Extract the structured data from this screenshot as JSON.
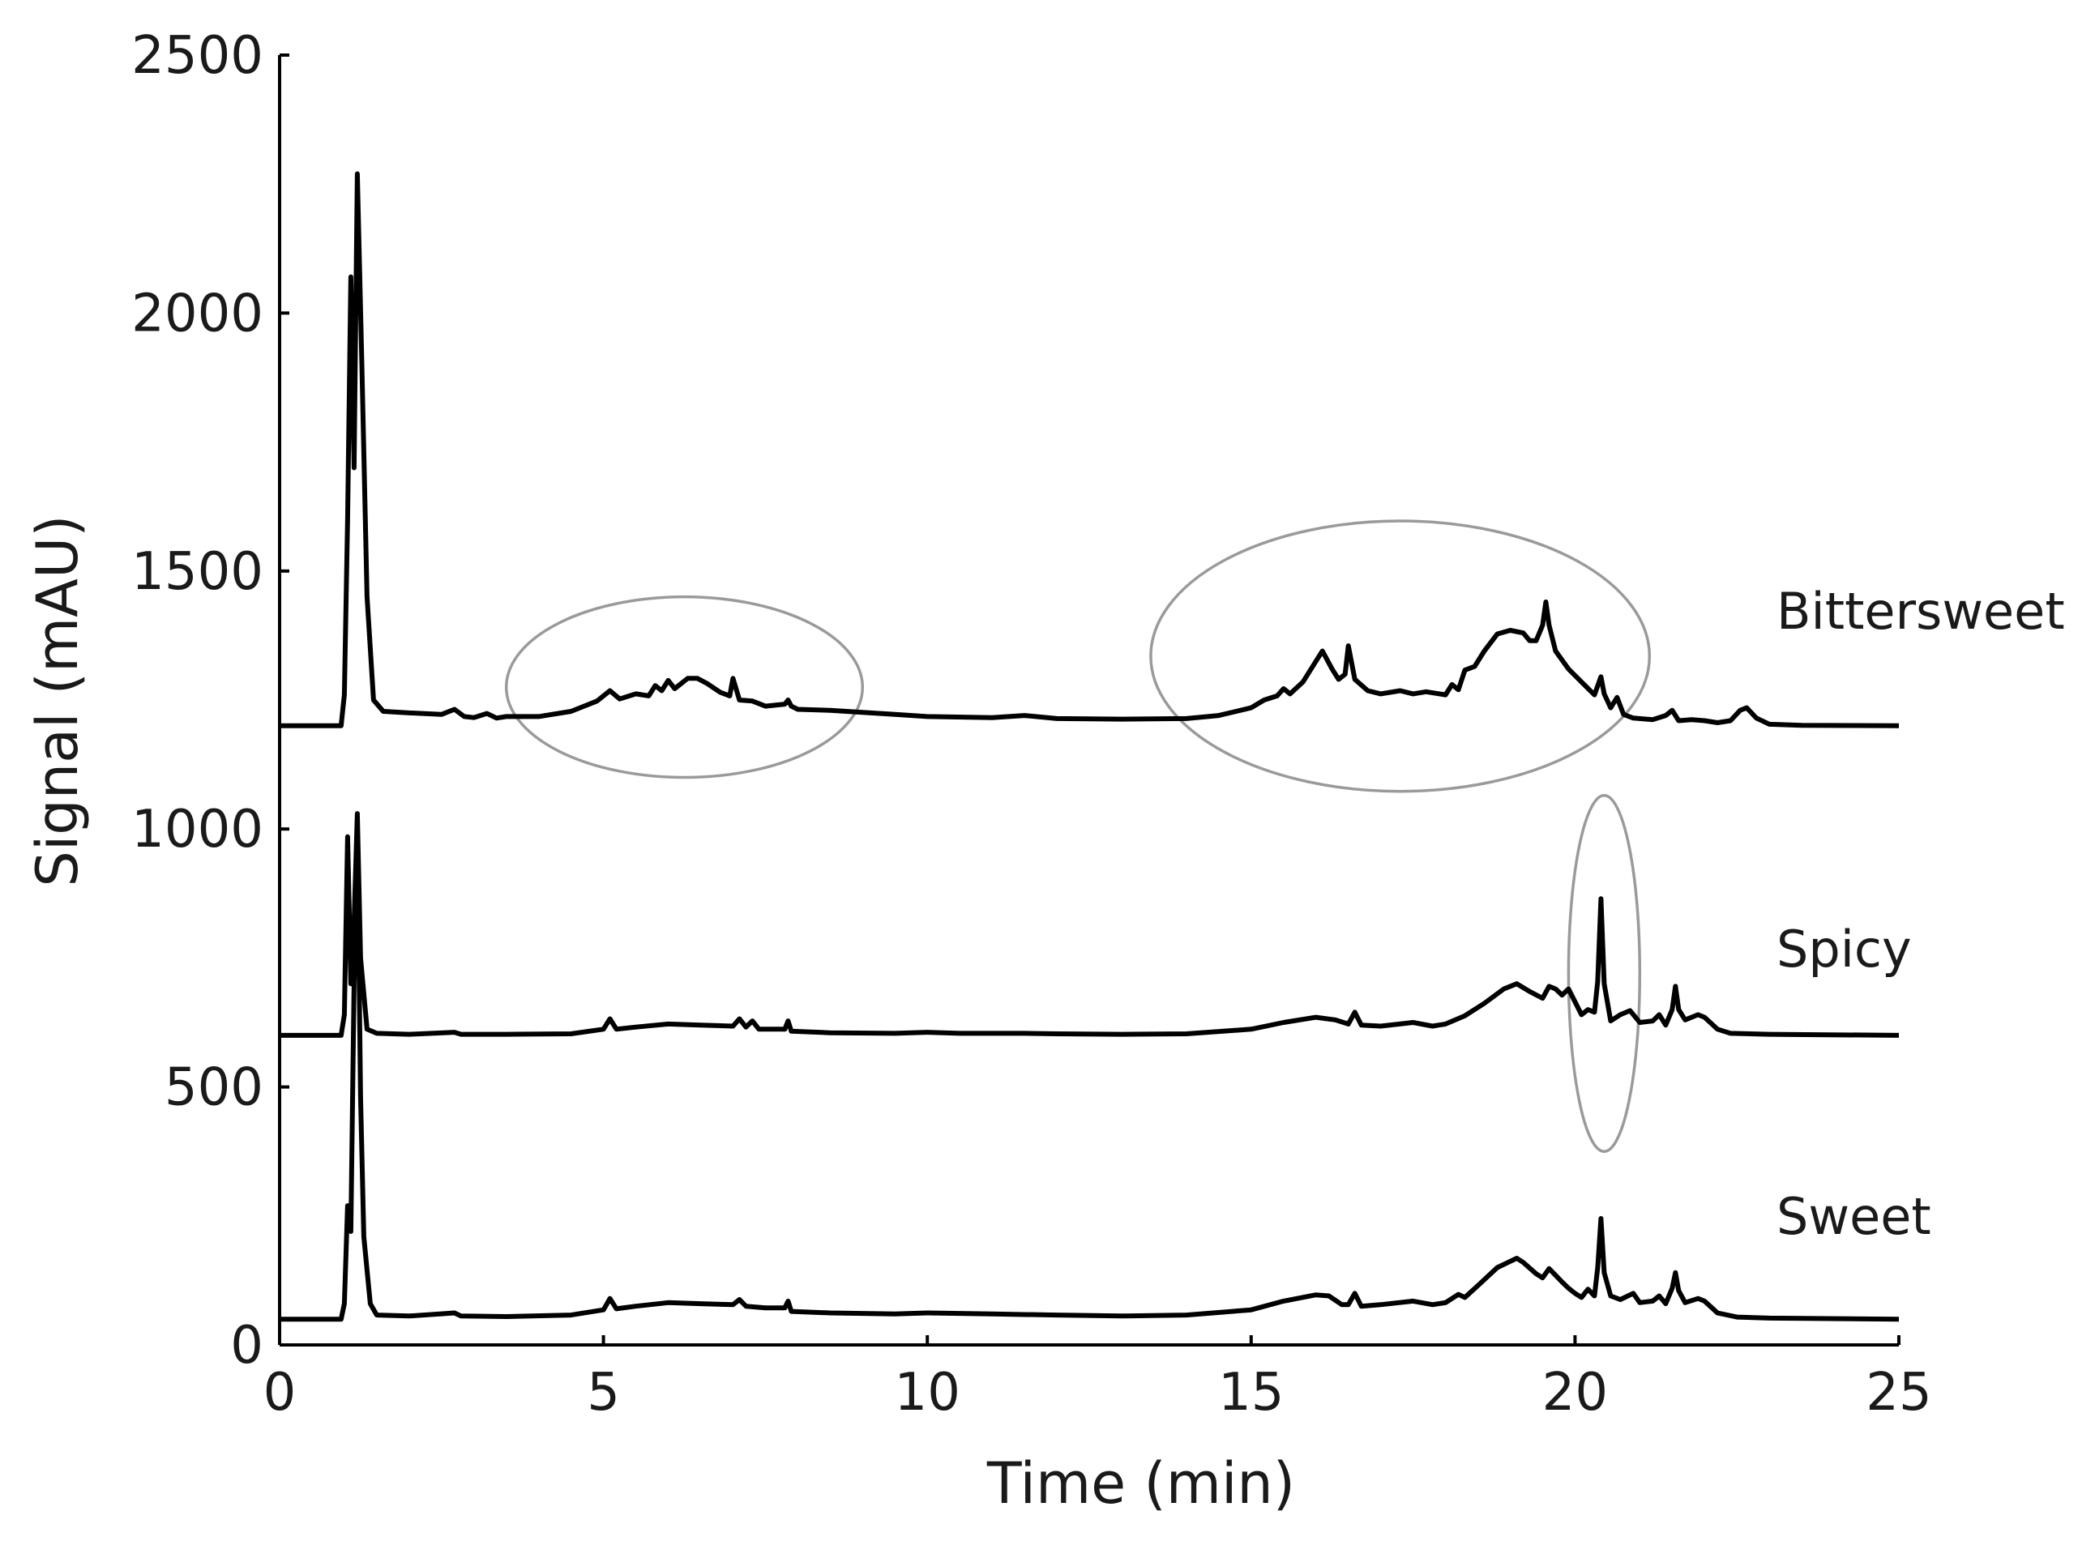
{
  "chart_data": {
    "type": "line",
    "xlabel": "Time (min)",
    "ylabel": "Signal (mAU)",
    "xlim": [
      0,
      25
    ],
    "ylim": [
      0,
      2500
    ],
    "xticks": [
      0,
      5,
      10,
      15,
      20,
      25
    ],
    "yticks": [
      0,
      500,
      1000,
      1500,
      2000,
      2500
    ],
    "grid": false,
    "line_color": "#000000",
    "annotation_color": "#9a9a9a",
    "series": [
      {
        "name": "Bittersweet",
        "baseline": 1200,
        "points": [
          [
            0,
            1200
          ],
          [
            0.95,
            1200
          ],
          [
            1.0,
            1260
          ],
          [
            1.05,
            1600
          ],
          [
            1.1,
            2070
          ],
          [
            1.15,
            1700
          ],
          [
            1.2,
            2270
          ],
          [
            1.27,
            1900
          ],
          [
            1.35,
            1450
          ],
          [
            1.45,
            1250
          ],
          [
            1.6,
            1228
          ],
          [
            2.0,
            1225
          ],
          [
            2.5,
            1222
          ],
          [
            2.7,
            1232
          ],
          [
            2.85,
            1218
          ],
          [
            3.0,
            1216
          ],
          [
            3.2,
            1224
          ],
          [
            3.35,
            1215
          ],
          [
            3.5,
            1218
          ],
          [
            4.0,
            1218
          ],
          [
            4.5,
            1228
          ],
          [
            4.9,
            1248
          ],
          [
            5.1,
            1268
          ],
          [
            5.25,
            1252
          ],
          [
            5.5,
            1262
          ],
          [
            5.7,
            1258
          ],
          [
            5.8,
            1278
          ],
          [
            5.9,
            1268
          ],
          [
            6.0,
            1288
          ],
          [
            6.1,
            1272
          ],
          [
            6.3,
            1292
          ],
          [
            6.45,
            1292
          ],
          [
            6.6,
            1282
          ],
          [
            6.8,
            1265
          ],
          [
            6.95,
            1258
          ],
          [
            7.0,
            1292
          ],
          [
            7.1,
            1250
          ],
          [
            7.3,
            1248
          ],
          [
            7.5,
            1238
          ],
          [
            7.8,
            1242
          ],
          [
            7.85,
            1250
          ],
          [
            7.9,
            1238
          ],
          [
            8.0,
            1232
          ],
          [
            8.5,
            1230
          ],
          [
            9.0,
            1226
          ],
          [
            9.5,
            1222
          ],
          [
            10.0,
            1218
          ],
          [
            11.0,
            1216
          ],
          [
            11.5,
            1220
          ],
          [
            12.0,
            1214
          ],
          [
            13.0,
            1213
          ],
          [
            14.0,
            1214
          ],
          [
            14.5,
            1220
          ],
          [
            15.0,
            1235
          ],
          [
            15.2,
            1250
          ],
          [
            15.4,
            1258
          ],
          [
            15.5,
            1272
          ],
          [
            15.6,
            1262
          ],
          [
            15.8,
            1285
          ],
          [
            16.0,
            1325
          ],
          [
            16.1,
            1345
          ],
          [
            16.25,
            1310
          ],
          [
            16.35,
            1290
          ],
          [
            16.45,
            1300
          ],
          [
            16.5,
            1355
          ],
          [
            16.6,
            1290
          ],
          [
            16.8,
            1268
          ],
          [
            17.0,
            1262
          ],
          [
            17.3,
            1268
          ],
          [
            17.5,
            1262
          ],
          [
            17.7,
            1266
          ],
          [
            18.0,
            1260
          ],
          [
            18.1,
            1280
          ],
          [
            18.2,
            1270
          ],
          [
            18.3,
            1308
          ],
          [
            18.45,
            1315
          ],
          [
            18.6,
            1345
          ],
          [
            18.8,
            1378
          ],
          [
            19.0,
            1385
          ],
          [
            19.2,
            1380
          ],
          [
            19.3,
            1365
          ],
          [
            19.4,
            1365
          ],
          [
            19.5,
            1395
          ],
          [
            19.55,
            1440
          ],
          [
            19.6,
            1395
          ],
          [
            19.7,
            1345
          ],
          [
            19.9,
            1310
          ],
          [
            20.1,
            1285
          ],
          [
            20.3,
            1260
          ],
          [
            20.4,
            1295
          ],
          [
            20.45,
            1262
          ],
          [
            20.55,
            1235
          ],
          [
            20.65,
            1255
          ],
          [
            20.75,
            1222
          ],
          [
            20.9,
            1215
          ],
          [
            21.2,
            1212
          ],
          [
            21.4,
            1220
          ],
          [
            21.5,
            1230
          ],
          [
            21.6,
            1210
          ],
          [
            21.8,
            1212
          ],
          [
            22.0,
            1210
          ],
          [
            22.2,
            1206
          ],
          [
            22.4,
            1210
          ],
          [
            22.55,
            1230
          ],
          [
            22.65,
            1235
          ],
          [
            22.8,
            1215
          ],
          [
            23.0,
            1203
          ],
          [
            23.5,
            1201
          ],
          [
            25,
            1200
          ]
        ]
      },
      {
        "name": "Spicy",
        "baseline": 600,
        "points": [
          [
            0,
            600
          ],
          [
            0.95,
            600
          ],
          [
            1.0,
            640
          ],
          [
            1.05,
            985
          ],
          [
            1.1,
            700
          ],
          [
            1.15,
            820
          ],
          [
            1.2,
            1030
          ],
          [
            1.25,
            750
          ],
          [
            1.35,
            612
          ],
          [
            1.5,
            604
          ],
          [
            2.0,
            602
          ],
          [
            2.7,
            606
          ],
          [
            2.8,
            602
          ],
          [
            3.5,
            602
          ],
          [
            4.5,
            603
          ],
          [
            5.0,
            612
          ],
          [
            5.1,
            632
          ],
          [
            5.2,
            612
          ],
          [
            5.5,
            616
          ],
          [
            6.0,
            622
          ],
          [
            6.5,
            620
          ],
          [
            7.0,
            618
          ],
          [
            7.1,
            632
          ],
          [
            7.2,
            616
          ],
          [
            7.3,
            628
          ],
          [
            7.4,
            612
          ],
          [
            7.8,
            612
          ],
          [
            7.85,
            628
          ],
          [
            7.9,
            608
          ],
          [
            8.5,
            605
          ],
          [
            9.5,
            604
          ],
          [
            10.0,
            606
          ],
          [
            10.5,
            604
          ],
          [
            11.5,
            604
          ],
          [
            12.0,
            603
          ],
          [
            13.0,
            602
          ],
          [
            14.0,
            603
          ],
          [
            15.0,
            612
          ],
          [
            15.5,
            625
          ],
          [
            16.0,
            635
          ],
          [
            16.3,
            630
          ],
          [
            16.5,
            622
          ],
          [
            16.6,
            645
          ],
          [
            16.7,
            620
          ],
          [
            17.0,
            618
          ],
          [
            17.5,
            625
          ],
          [
            17.8,
            618
          ],
          [
            18.0,
            622
          ],
          [
            18.3,
            638
          ],
          [
            18.6,
            662
          ],
          [
            18.9,
            690
          ],
          [
            19.1,
            700
          ],
          [
            19.3,
            685
          ],
          [
            19.5,
            672
          ],
          [
            19.6,
            695
          ],
          [
            19.7,
            690
          ],
          [
            19.8,
            678
          ],
          [
            19.9,
            690
          ],
          [
            20.0,
            665
          ],
          [
            20.1,
            640
          ],
          [
            20.2,
            650
          ],
          [
            20.3,
            645
          ],
          [
            20.35,
            705
          ],
          [
            20.4,
            865
          ],
          [
            20.45,
            700
          ],
          [
            20.55,
            628
          ],
          [
            20.7,
            640
          ],
          [
            20.85,
            648
          ],
          [
            21.0,
            625
          ],
          [
            21.2,
            628
          ],
          [
            21.3,
            640
          ],
          [
            21.4,
            620
          ],
          [
            21.5,
            650
          ],
          [
            21.55,
            695
          ],
          [
            21.6,
            650
          ],
          [
            21.7,
            630
          ],
          [
            21.9,
            640
          ],
          [
            22.0,
            635
          ],
          [
            22.2,
            612
          ],
          [
            22.4,
            604
          ],
          [
            23.0,
            602
          ],
          [
            25,
            600
          ]
        ]
      },
      {
        "name": "Sweet",
        "baseline": 50,
        "points": [
          [
            0,
            50
          ],
          [
            0.95,
            50
          ],
          [
            1.0,
            80
          ],
          [
            1.05,
            270
          ],
          [
            1.1,
            220
          ],
          [
            1.15,
            700
          ],
          [
            1.2,
            1010
          ],
          [
            1.25,
            480
          ],
          [
            1.3,
            210
          ],
          [
            1.4,
            80
          ],
          [
            1.5,
            58
          ],
          [
            2.0,
            56
          ],
          [
            2.7,
            62
          ],
          [
            2.8,
            56
          ],
          [
            3.5,
            55
          ],
          [
            4.5,
            58
          ],
          [
            5.0,
            68
          ],
          [
            5.1,
            90
          ],
          [
            5.2,
            70
          ],
          [
            5.5,
            75
          ],
          [
            6.0,
            82
          ],
          [
            6.5,
            80
          ],
          [
            7.0,
            78
          ],
          [
            7.1,
            88
          ],
          [
            7.2,
            75
          ],
          [
            7.5,
            72
          ],
          [
            7.8,
            72
          ],
          [
            7.85,
            85
          ],
          [
            7.9,
            65
          ],
          [
            8.5,
            62
          ],
          [
            9.5,
            60
          ],
          [
            10.0,
            62
          ],
          [
            11.0,
            60
          ],
          [
            12.0,
            58
          ],
          [
            13.0,
            56
          ],
          [
            14.0,
            58
          ],
          [
            15.0,
            68
          ],
          [
            15.5,
            85
          ],
          [
            16.0,
            97
          ],
          [
            16.2,
            95
          ],
          [
            16.4,
            78
          ],
          [
            16.5,
            78
          ],
          [
            16.6,
            100
          ],
          [
            16.7,
            75
          ],
          [
            17.0,
            78
          ],
          [
            17.5,
            85
          ],
          [
            17.8,
            78
          ],
          [
            18.0,
            82
          ],
          [
            18.2,
            98
          ],
          [
            18.3,
            92
          ],
          [
            18.5,
            115
          ],
          [
            18.8,
            150
          ],
          [
            19.0,
            162
          ],
          [
            19.1,
            168
          ],
          [
            19.2,
            160
          ],
          [
            19.4,
            138
          ],
          [
            19.5,
            130
          ],
          [
            19.6,
            148
          ],
          [
            19.7,
            135
          ],
          [
            19.8,
            122
          ],
          [
            19.9,
            110
          ],
          [
            20.0,
            100
          ],
          [
            20.1,
            92
          ],
          [
            20.2,
            108
          ],
          [
            20.3,
            95
          ],
          [
            20.35,
            150
          ],
          [
            20.4,
            245
          ],
          [
            20.45,
            140
          ],
          [
            20.55,
            95
          ],
          [
            20.7,
            88
          ],
          [
            20.9,
            100
          ],
          [
            21.0,
            82
          ],
          [
            21.2,
            85
          ],
          [
            21.3,
            95
          ],
          [
            21.4,
            80
          ],
          [
            21.5,
            110
          ],
          [
            21.55,
            140
          ],
          [
            21.6,
            105
          ],
          [
            21.7,
            82
          ],
          [
            21.9,
            90
          ],
          [
            22.0,
            85
          ],
          [
            22.2,
            62
          ],
          [
            22.5,
            54
          ],
          [
            23.0,
            52
          ],
          [
            25,
            50
          ]
        ]
      }
    ],
    "annotations": [
      {
        "type": "ellipse",
        "cx": 6.25,
        "cy": 1275,
        "rx": 2.75,
        "ry": 175
      },
      {
        "type": "ellipse",
        "cx": 17.3,
        "cy": 1335,
        "rx": 3.85,
        "ry": 262
      },
      {
        "type": "ellipse",
        "cx": 20.45,
        "cy": 720,
        "rx": 0.55,
        "ry": 345
      }
    ]
  }
}
